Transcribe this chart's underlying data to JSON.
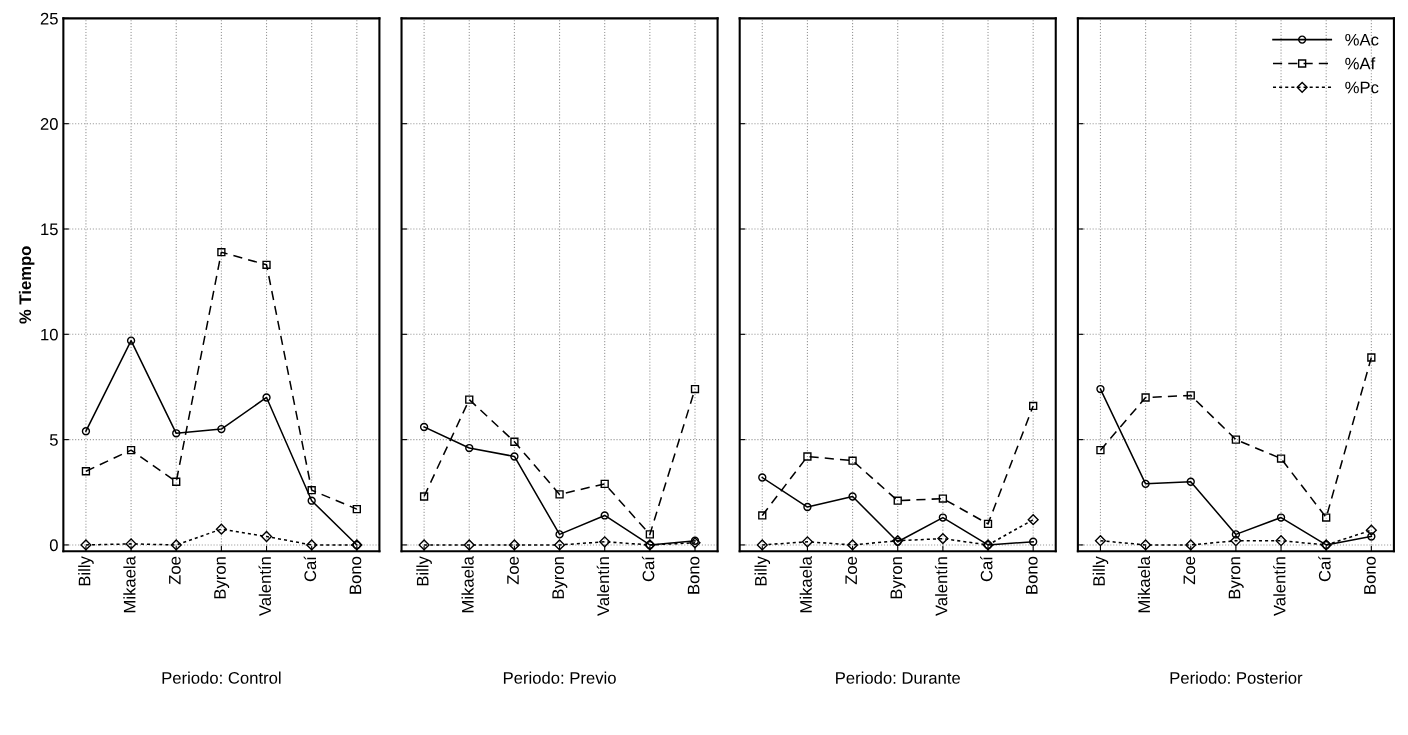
{
  "chart_data": [
    {
      "type": "line",
      "xlabel": "Periodo: Control",
      "ylabel": "% Tiempo",
      "categories": [
        "Billy",
        "Mikaela",
        "Zoe",
        "Byron",
        "Valentín",
        "Caí",
        "Bono"
      ],
      "ylim": [
        -0.3,
        25
      ],
      "yticks": [
        0,
        5,
        10,
        15,
        20,
        25
      ],
      "grid": true,
      "series": [
        {
          "color": "#000000",
          "marker": "circle",
          "line_style": "solid",
          "values": [
            5.4,
            9.7,
            5.3,
            5.5,
            7.0,
            2.1,
            0.0
          ]
        },
        {
          "color": "#000000",
          "marker": "square",
          "line_style": "dashed",
          "values": [
            3.5,
            4.5,
            3.0,
            13.9,
            13.3,
            2.6,
            1.7
          ]
        },
        {
          "color": "#000000",
          "marker": "diamond",
          "line_style": "dotted",
          "values": [
            0.0,
            0.05,
            0.0,
            0.75,
            0.4,
            0.0,
            0.0
          ]
        }
      ]
    },
    {
      "type": "line",
      "xlabel": "Periodo: Previo",
      "categories": [
        "Billy",
        "Mikaela",
        "Zoe",
        "Byron",
        "Valentín",
        "Caí",
        "Bono"
      ],
      "ylim": [
        -0.3,
        25
      ],
      "yticks": [
        0,
        5,
        10,
        15,
        20,
        25
      ],
      "grid": true,
      "tick_labels": "x",
      "series": [
        {
          "color": "#000000",
          "marker": "circle",
          "line_style": "solid",
          "values": [
            5.6,
            4.6,
            4.2,
            0.5,
            1.4,
            0.0,
            0.2
          ]
        },
        {
          "color": "#000000",
          "marker": "square",
          "line_style": "dashed",
          "values": [
            2.3,
            6.9,
            4.9,
            2.4,
            2.9,
            0.5,
            7.4
          ]
        },
        {
          "color": "#000000",
          "marker": "diamond",
          "line_style": "dotted",
          "values": [
            0.0,
            0.0,
            0.0,
            0.0,
            0.15,
            0.0,
            0.1
          ]
        }
      ]
    },
    {
      "type": "line",
      "xlabel": "Periodo: Durante",
      "categories": [
        "Billy",
        "Mikaela",
        "Zoe",
        "Byron",
        "Valentín",
        "Caí",
        "Bono"
      ],
      "ylim": [
        -0.3,
        25
      ],
      "yticks": [
        0,
        5,
        10,
        15,
        20,
        25
      ],
      "grid": true,
      "tick_labels": "x",
      "series": [
        {
          "color": "#000000",
          "marker": "circle",
          "line_style": "solid",
          "values": [
            3.2,
            1.8,
            2.3,
            0.15,
            1.3,
            0.0,
            0.15
          ]
        },
        {
          "color": "#000000",
          "marker": "square",
          "line_style": "dashed",
          "values": [
            1.4,
            4.2,
            4.0,
            2.1,
            2.2,
            1.0,
            6.6
          ]
        },
        {
          "color": "#000000",
          "marker": "diamond",
          "line_style": "dotted",
          "values": [
            0.0,
            0.15,
            0.0,
            0.2,
            0.3,
            0.0,
            1.2
          ]
        }
      ]
    },
    {
      "type": "line",
      "xlabel": "Periodo: Posterior",
      "categories": [
        "Billy",
        "Mikaela",
        "Zoe",
        "Byron",
        "Valentín",
        "Caí",
        "Bono"
      ],
      "ylim": [
        -0.3,
        25
      ],
      "yticks": [
        0,
        5,
        10,
        15,
        20,
        25
      ],
      "grid": true,
      "legend": "top right",
      "tick_labels": "x",
      "series": [
        {
          "name": "%Ac",
          "color": "#000000",
          "marker": "circle",
          "line_style": "solid",
          "values": [
            7.4,
            2.9,
            3.0,
            0.5,
            1.3,
            0.0,
            0.4
          ]
        },
        {
          "name": "%Af",
          "color": "#000000",
          "marker": "square",
          "line_style": "dashed",
          "values": [
            4.5,
            7.0,
            7.1,
            5.0,
            4.1,
            1.3,
            8.9
          ]
        },
        {
          "name": "%Pc",
          "color": "#000000",
          "marker": "diamond",
          "line_style": "dotted",
          "values": [
            0.2,
            0.0,
            0.0,
            0.2,
            0.2,
            0.0,
            0.7
          ]
        }
      ]
    }
  ]
}
